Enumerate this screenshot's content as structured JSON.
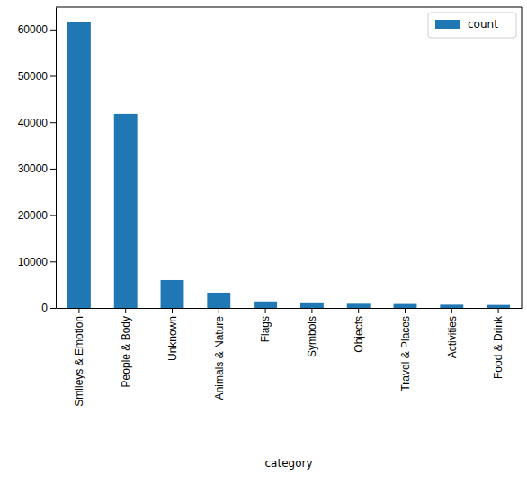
{
  "chart_data": {
    "type": "bar",
    "x_label": "category",
    "categories": [
      "Smileys & Emotion",
      "People & Body",
      "Unknown",
      "Animals & Nature",
      "Flags",
      "Symbols",
      "Objects",
      "Travel & Places",
      "Activities",
      "Food & Drink"
    ],
    "series": [
      {
        "name": "count",
        "color": "#1f77b4",
        "values": [
          61700,
          41800,
          6000,
          3300,
          1400,
          1200,
          900,
          850,
          700,
          650
        ]
      }
    ],
    "ylim": [
      0,
      64800
    ],
    "yticks": [
      0,
      10000,
      20000,
      30000,
      40000,
      50000,
      60000
    ],
    "legend": "upper right",
    "grid": false
  }
}
